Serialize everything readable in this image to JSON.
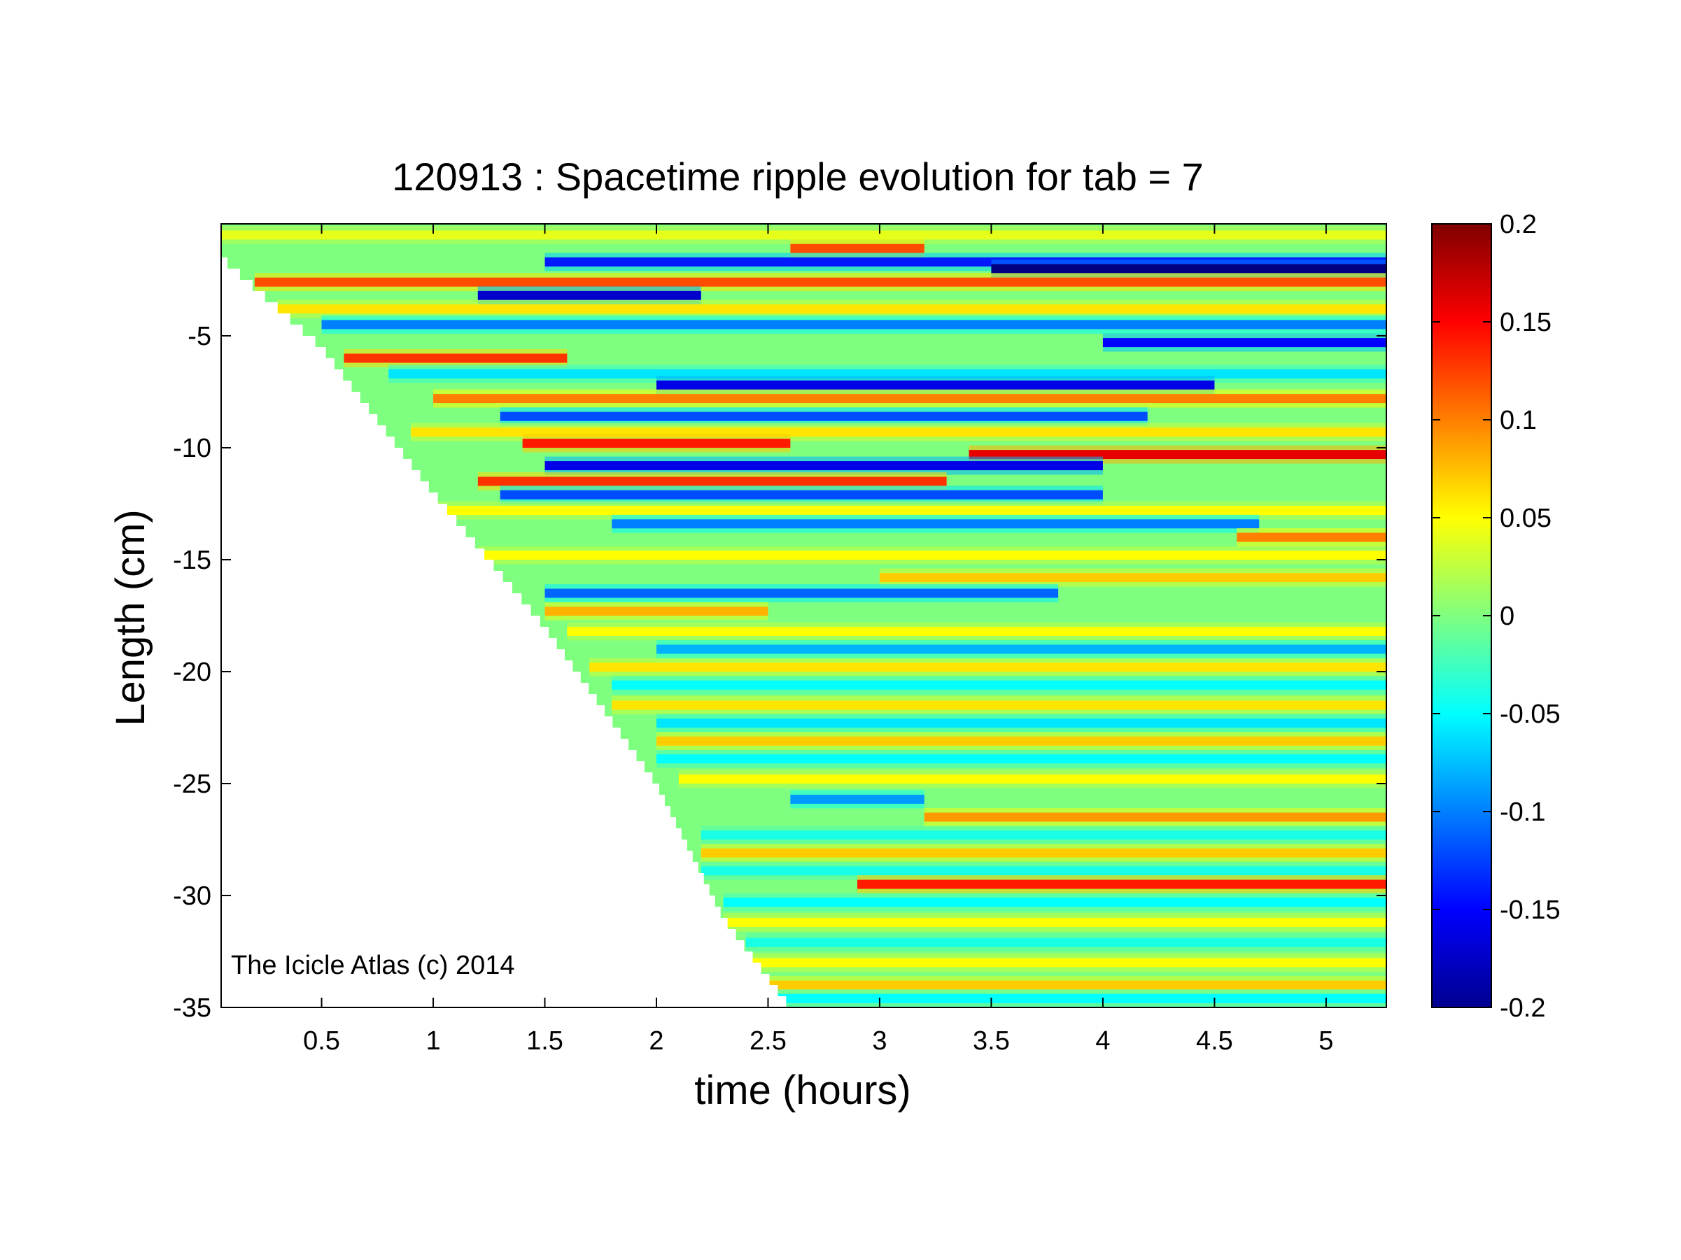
{
  "chart_data": {
    "type": "heatmap",
    "title": "120913 : Spacetime ripple evolution for tab = 7",
    "xlabel": "time (hours)",
    "ylabel": "Length (cm)",
    "annotation": "The Icicle Atlas (c) 2014",
    "xlim": [
      0.05,
      5.27
    ],
    "ylim": [
      -35,
      0
    ],
    "xticks": [
      0.5,
      1,
      1.5,
      2,
      2.5,
      3,
      3.5,
      4,
      4.5,
      5
    ],
    "xtick_labels": [
      "0.5",
      "1",
      "1.5",
      "2",
      "2.5",
      "3",
      "3.5",
      "4",
      "4.5",
      "5"
    ],
    "yticks": [
      -5,
      -10,
      -15,
      -20,
      -25,
      -30,
      -35
    ],
    "ytick_labels": [
      "-5",
      "-10",
      "-15",
      "-20",
      "-25",
      "-30",
      "-35"
    ],
    "colorbar": {
      "colormap": "jet",
      "limits": [
        -0.2,
        0.2
      ],
      "ticks": [
        0.2,
        0.15,
        0.1,
        0.05,
        0,
        -0.05,
        -0.1,
        -0.15,
        -0.2
      ],
      "tick_labels": [
        "0.2",
        "0.15",
        "0.1",
        "0.05",
        "0",
        "-0.05",
        "-0.1",
        "-0.15",
        "-0.2"
      ]
    },
    "growth_front": {
      "description_points_time": [
        0.05,
        0.5,
        1.0,
        1.5,
        2.0,
        2.3,
        2.6
      ],
      "description_points_length": [
        -1.5,
        -5.5,
        -12.0,
        -18.0,
        -25.0,
        -31.0,
        -35.0
      ]
    },
    "bands": [
      {
        "y": -0.5,
        "amp": 0.04,
        "t_start": 0.05,
        "t_end": 5.27
      },
      {
        "y": -1.1,
        "amp": 0.12,
        "t_start": 2.6,
        "t_end": 3.2
      },
      {
        "y": -1.7,
        "amp": -0.14,
        "t_start": 1.5,
        "t_end": 5.27
      },
      {
        "y": -2.0,
        "amp": -0.2,
        "t_start": 3.5,
        "t_end": 5.27
      },
      {
        "y": -2.6,
        "amp": 0.12,
        "t_start": 0.2,
        "t_end": 5.27
      },
      {
        "y": -3.2,
        "amp": -0.17,
        "t_start": 1.2,
        "t_end": 2.2
      },
      {
        "y": -3.8,
        "amp": 0.06,
        "t_start": 0.3,
        "t_end": 5.27
      },
      {
        "y": -4.5,
        "amp": -0.1,
        "t_start": 0.5,
        "t_end": 5.27
      },
      {
        "y": -5.3,
        "amp": -0.15,
        "t_start": 4.0,
        "t_end": 5.27
      },
      {
        "y": -6.0,
        "amp": 0.13,
        "t_start": 0.6,
        "t_end": 1.6
      },
      {
        "y": -6.7,
        "amp": -0.06,
        "t_start": 0.8,
        "t_end": 5.27
      },
      {
        "y": -7.2,
        "amp": -0.16,
        "t_start": 2.0,
        "t_end": 4.5
      },
      {
        "y": -7.8,
        "amp": 0.1,
        "t_start": 1.0,
        "t_end": 5.27
      },
      {
        "y": -8.6,
        "amp": -0.12,
        "t_start": 1.3,
        "t_end": 4.2
      },
      {
        "y": -9.3,
        "amp": 0.06,
        "t_start": 0.9,
        "t_end": 5.27
      },
      {
        "y": -9.8,
        "amp": 0.14,
        "t_start": 1.4,
        "t_end": 2.6
      },
      {
        "y": -10.3,
        "amp": 0.16,
        "t_start": 3.4,
        "t_end": 5.27
      },
      {
        "y": -10.8,
        "amp": -0.16,
        "t_start": 1.5,
        "t_end": 4.0
      },
      {
        "y": -11.5,
        "amp": 0.13,
        "t_start": 1.2,
        "t_end": 3.3
      },
      {
        "y": -12.1,
        "amp": -0.12,
        "t_start": 1.3,
        "t_end": 4.0
      },
      {
        "y": -12.8,
        "amp": 0.05,
        "t_start": 1.0,
        "t_end": 5.27
      },
      {
        "y": -13.4,
        "amp": -0.1,
        "t_start": 1.8,
        "t_end": 4.7
      },
      {
        "y": -14.0,
        "amp": 0.1,
        "t_start": 4.6,
        "t_end": 5.27
      },
      {
        "y": -14.8,
        "amp": 0.05,
        "t_start": 1.2,
        "t_end": 5.27
      },
      {
        "y": -15.8,
        "amp": 0.07,
        "t_start": 3.0,
        "t_end": 5.27
      },
      {
        "y": -16.5,
        "amp": -0.11,
        "t_start": 1.5,
        "t_end": 3.8
      },
      {
        "y": -17.3,
        "amp": 0.08,
        "t_start": 1.5,
        "t_end": 2.5
      },
      {
        "y": -18.2,
        "amp": 0.05,
        "t_start": 1.6,
        "t_end": 5.27
      },
      {
        "y": -19.0,
        "amp": -0.08,
        "t_start": 2.0,
        "t_end": 5.27
      },
      {
        "y": -19.8,
        "amp": 0.06,
        "t_start": 1.7,
        "t_end": 5.27
      },
      {
        "y": -20.6,
        "amp": -0.05,
        "t_start": 1.8,
        "t_end": 5.27
      },
      {
        "y": -21.5,
        "amp": 0.06,
        "t_start": 1.8,
        "t_end": 5.27
      },
      {
        "y": -22.3,
        "amp": -0.06,
        "t_start": 2.0,
        "t_end": 5.27
      },
      {
        "y": -23.1,
        "amp": 0.07,
        "t_start": 2.0,
        "t_end": 5.27
      },
      {
        "y": -23.9,
        "amp": -0.05,
        "t_start": 2.0,
        "t_end": 5.27
      },
      {
        "y": -24.8,
        "amp": 0.05,
        "t_start": 2.1,
        "t_end": 5.27
      },
      {
        "y": -25.7,
        "amp": -0.09,
        "t_start": 2.6,
        "t_end": 3.2
      },
      {
        "y": -26.5,
        "amp": 0.09,
        "t_start": 3.2,
        "t_end": 5.27
      },
      {
        "y": -27.3,
        "amp": -0.04,
        "t_start": 2.2,
        "t_end": 5.27
      },
      {
        "y": -28.1,
        "amp": 0.07,
        "t_start": 2.2,
        "t_end": 5.27
      },
      {
        "y": -28.9,
        "amp": -0.04,
        "t_start": 2.2,
        "t_end": 5.27
      },
      {
        "y": -29.5,
        "amp": 0.14,
        "t_start": 2.9,
        "t_end": 5.27
      },
      {
        "y": -30.3,
        "amp": -0.05,
        "t_start": 2.3,
        "t_end": 5.27
      },
      {
        "y": -31.2,
        "amp": 0.05,
        "t_start": 2.3,
        "t_end": 5.27
      },
      {
        "y": -32.1,
        "amp": -0.04,
        "t_start": 2.4,
        "t_end": 5.27
      },
      {
        "y": -33.0,
        "amp": 0.05,
        "t_start": 2.4,
        "t_end": 5.27
      },
      {
        "y": -34.0,
        "amp": 0.07,
        "t_start": 2.5,
        "t_end": 5.27
      },
      {
        "y": -34.6,
        "amp": -0.05,
        "t_start": 2.5,
        "t_end": 5.27
      }
    ]
  }
}
